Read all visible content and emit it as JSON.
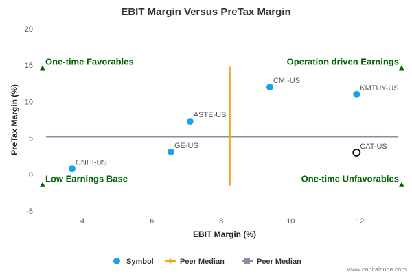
{
  "chart_data": {
    "type": "scatter",
    "title": "EBIT Margin Versus PreTax Margin",
    "xlabel": "EBIT Margin (%)",
    "ylabel": "PreTax Margin (%)",
    "xlim": [
      2.85,
      13.3
    ],
    "ylim": [
      -5,
      20
    ],
    "xticks": [
      4,
      6,
      8,
      10,
      12
    ],
    "yticks": [
      -5,
      0,
      5,
      10,
      15,
      20
    ],
    "grid": false,
    "legend_position": "bottom-center",
    "series": [
      {
        "name": "Symbol",
        "color": "#1aa3e8",
        "points": [
          {
            "label": "CNHI-US",
            "x": 3.7,
            "y": 0.8
          },
          {
            "label": "GE-US",
            "x": 6.55,
            "y": 3.1
          },
          {
            "label": "ASTE-US",
            "x": 7.1,
            "y": 7.3
          },
          {
            "label": "CMI-US",
            "x": 9.4,
            "y": 12.0
          },
          {
            "label": "KMTUY-US",
            "x": 11.9,
            "y": 11.0
          }
        ]
      }
    ],
    "highlight": {
      "label": "CAT-US",
      "x": 11.9,
      "y": 3.0
    },
    "peer_median_x": {
      "name": "Peer Median",
      "value": 8.25,
      "color": "#f5a623",
      "y_range": [
        -1.5,
        14.8
      ]
    },
    "peer_median_y": {
      "name": "Peer Median",
      "value": 5.2,
      "color": "#8c8ca6"
    },
    "quadrants": [
      {
        "text": "One-time Favorables",
        "x": 2.85,
        "y": 14.6,
        "align": "left"
      },
      {
        "text": "Operation driven Earnings",
        "x": 13.2,
        "y": 14.6,
        "align": "right"
      },
      {
        "text": "Low Earnings Base",
        "x": 2.85,
        "y": -1.4,
        "align": "left"
      },
      {
        "text": "One-time Unfavorables",
        "x": 13.2,
        "y": -1.4,
        "align": "right"
      }
    ],
    "quadrant_color": "#006400"
  },
  "legend": [
    {
      "label": "Symbol",
      "marker": "circle",
      "color": "#1aa3e8"
    },
    {
      "label": "Peer Median",
      "marker": "diamond-line",
      "color": "#f5a623"
    },
    {
      "label": "Peer Median",
      "marker": "square-line",
      "color": "#8c8ca6"
    }
  ],
  "credit": "www.capitalcube.com"
}
